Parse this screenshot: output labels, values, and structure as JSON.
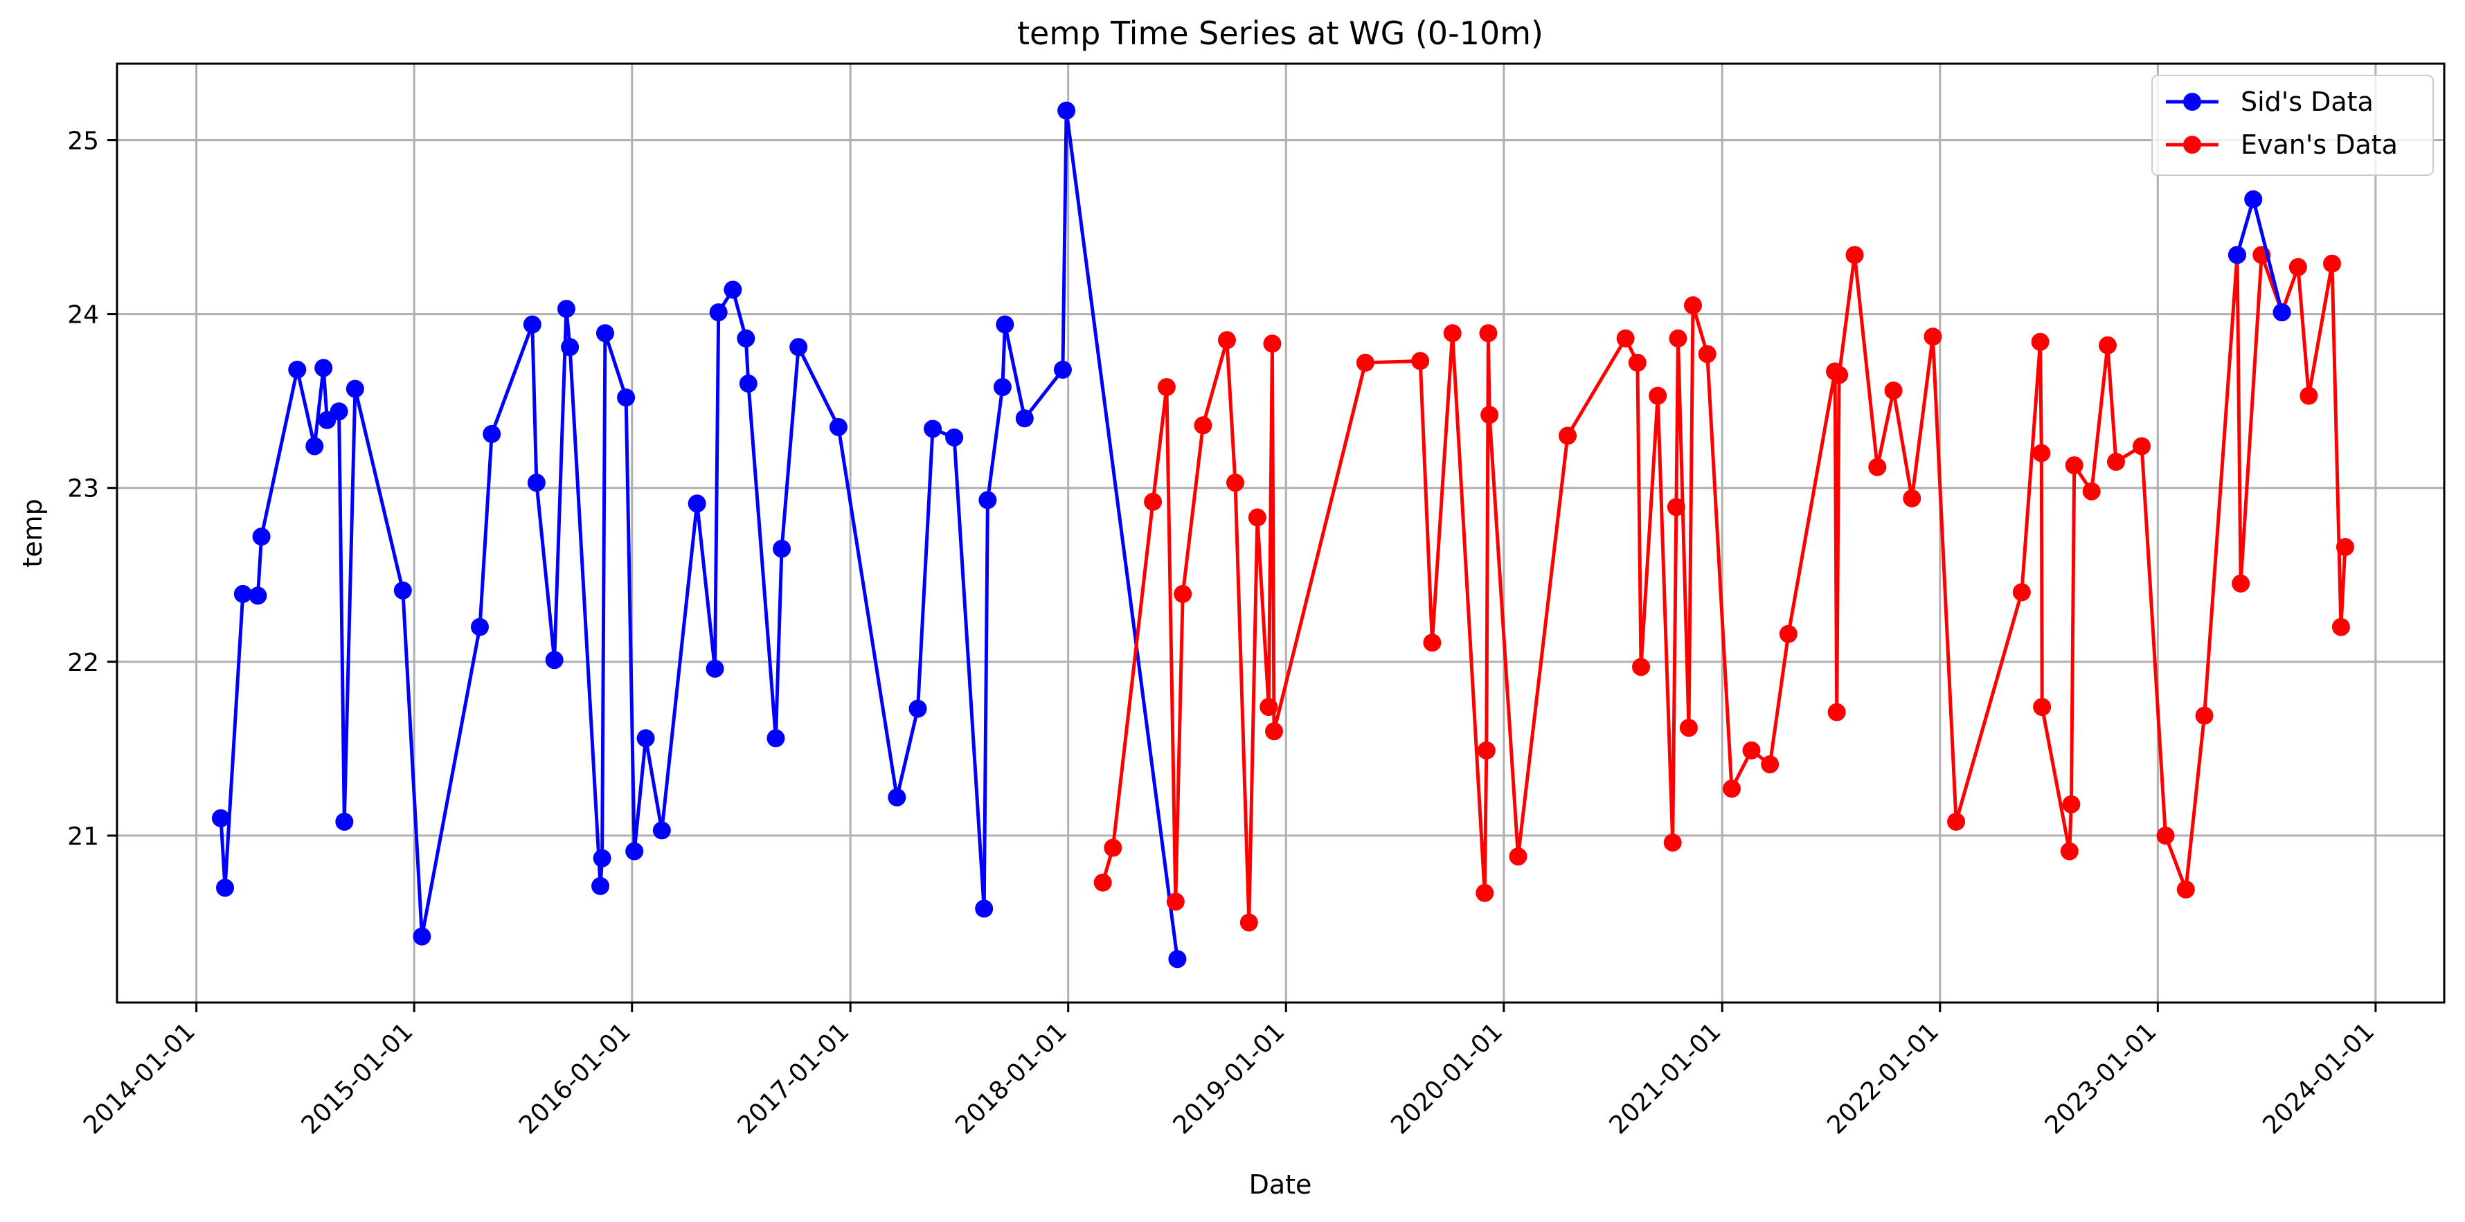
{
  "chart_data": {
    "type": "line",
    "title": "temp Time Series at WG (0-10m)",
    "xlabel": "Date",
    "ylabel": "temp",
    "x_type": "date",
    "xlim": [
      "2013-08-21",
      "2024-04-25"
    ],
    "ylim": [
      20.04,
      25.44
    ],
    "x_ticks": [
      "2014-01-01",
      "2015-01-01",
      "2016-01-01",
      "2017-01-01",
      "2018-01-01",
      "2019-01-01",
      "2020-01-01",
      "2021-01-01",
      "2022-01-01",
      "2023-01-01",
      "2024-01-01"
    ],
    "y_ticks": [
      21,
      22,
      23,
      24,
      25
    ],
    "grid": true,
    "legend_position": "top-right",
    "series": [
      {
        "name": "Sid's Data",
        "color": "#0000ff",
        "marker": "circle",
        "points": [
          [
            "2014-02-11",
            21.1
          ],
          [
            "2014-02-18",
            20.7
          ],
          [
            "2014-03-20",
            22.39
          ],
          [
            "2014-04-14",
            22.38
          ],
          [
            "2014-04-20",
            22.72
          ],
          [
            "2014-06-19",
            23.68
          ],
          [
            "2014-07-18",
            23.24
          ],
          [
            "2014-08-02",
            23.69
          ],
          [
            "2014-08-08",
            23.39
          ],
          [
            "2014-08-28",
            23.44
          ],
          [
            "2014-09-06",
            21.08
          ],
          [
            "2014-09-24",
            23.57
          ],
          [
            "2014-12-13",
            22.41
          ],
          [
            "2015-01-14",
            20.42
          ],
          [
            "2015-04-21",
            22.2
          ],
          [
            "2015-05-11",
            23.31
          ],
          [
            "2015-07-18",
            23.94
          ],
          [
            "2015-07-25",
            23.03
          ],
          [
            "2015-08-24",
            22.01
          ],
          [
            "2015-09-13",
            24.03
          ],
          [
            "2015-09-19",
            23.81
          ],
          [
            "2015-11-09",
            20.71
          ],
          [
            "2015-11-12",
            20.87
          ],
          [
            "2015-11-17",
            23.89
          ],
          [
            "2015-12-22",
            23.52
          ],
          [
            "2016-01-05",
            20.91
          ],
          [
            "2016-01-24",
            21.56
          ],
          [
            "2016-02-20",
            21.03
          ],
          [
            "2016-04-19",
            22.91
          ],
          [
            "2016-05-19",
            21.96
          ],
          [
            "2016-05-25",
            24.01
          ],
          [
            "2016-06-18",
            24.14
          ],
          [
            "2016-07-10",
            23.86
          ],
          [
            "2016-07-14",
            23.6
          ],
          [
            "2016-08-29",
            21.56
          ],
          [
            "2016-09-08",
            22.65
          ],
          [
            "2016-10-06",
            23.81
          ],
          [
            "2016-12-12",
            23.35
          ],
          [
            "2017-03-20",
            21.22
          ],
          [
            "2017-04-24",
            21.73
          ],
          [
            "2017-05-19",
            23.34
          ],
          [
            "2017-06-24",
            23.29
          ],
          [
            "2017-08-13",
            20.58
          ],
          [
            "2017-08-19",
            22.93
          ],
          [
            "2017-09-13",
            23.58
          ],
          [
            "2017-09-17",
            23.94
          ],
          [
            "2017-10-20",
            23.4
          ],
          [
            "2017-12-23",
            23.68
          ],
          [
            "2017-12-29",
            25.17
          ],
          [
            "2018-07-03",
            20.29
          ]
        ]
      },
      {
        "name": "Evan's Data",
        "color": "#ff0000",
        "marker": "circle",
        "points": [
          [
            "2018-02-28",
            20.73
          ],
          [
            "2018-03-17",
            20.93
          ],
          [
            "2018-05-23",
            22.92
          ],
          [
            "2018-06-15",
            23.58
          ],
          [
            "2018-06-30",
            20.62
          ],
          [
            "2018-07-12",
            22.39
          ],
          [
            "2018-08-15",
            23.36
          ],
          [
            "2018-09-24",
            23.85
          ],
          [
            "2018-10-08",
            23.03
          ],
          [
            "2018-10-31",
            20.5
          ],
          [
            "2018-11-14",
            22.83
          ],
          [
            "2018-12-03",
            21.74
          ],
          [
            "2018-12-09",
            23.83
          ],
          [
            "2018-12-12",
            21.6
          ],
          [
            "2019-05-14",
            23.72
          ],
          [
            "2019-08-14",
            23.73
          ],
          [
            "2019-09-03",
            22.11
          ],
          [
            "2019-10-07",
            23.89
          ],
          [
            "2019-11-30",
            20.67
          ],
          [
            "2019-12-03",
            21.49
          ],
          [
            "2019-12-06",
            23.89
          ],
          [
            "2019-12-08",
            23.42
          ],
          [
            "2020-01-25",
            20.88
          ],
          [
            "2020-04-17",
            23.3
          ],
          [
            "2020-07-23",
            23.86
          ],
          [
            "2020-08-12",
            23.72
          ],
          [
            "2020-08-18",
            21.97
          ],
          [
            "2020-09-15",
            23.53
          ],
          [
            "2020-10-10",
            20.96
          ],
          [
            "2020-10-16",
            22.89
          ],
          [
            "2020-10-19",
            23.86
          ],
          [
            "2020-11-06",
            21.62
          ],
          [
            "2020-11-13",
            24.05
          ],
          [
            "2020-12-07",
            23.77
          ],
          [
            "2021-01-17",
            21.27
          ],
          [
            "2021-02-19",
            21.49
          ],
          [
            "2021-03-22",
            21.41
          ],
          [
            "2021-04-22",
            22.16
          ],
          [
            "2021-07-09",
            23.67
          ],
          [
            "2021-07-12",
            21.71
          ],
          [
            "2021-07-16",
            23.65
          ],
          [
            "2021-08-11",
            24.34
          ],
          [
            "2021-09-18",
            23.12
          ],
          [
            "2021-10-15",
            23.56
          ],
          [
            "2021-11-15",
            22.94
          ],
          [
            "2021-12-20",
            23.87
          ],
          [
            "2022-01-28",
            21.08
          ],
          [
            "2022-05-18",
            22.4
          ],
          [
            "2022-06-18",
            23.84
          ],
          [
            "2022-06-20",
            23.2
          ],
          [
            "2022-06-21",
            21.74
          ],
          [
            "2022-08-06",
            20.91
          ],
          [
            "2022-08-09",
            21.18
          ],
          [
            "2022-08-14",
            23.13
          ],
          [
            "2022-09-12",
            22.98
          ],
          [
            "2022-10-09",
            23.82
          ],
          [
            "2022-10-23",
            23.15
          ],
          [
            "2022-12-05",
            23.24
          ],
          [
            "2023-01-14",
            21.0
          ],
          [
            "2023-02-17",
            20.69
          ],
          [
            "2023-03-20",
            21.69
          ],
          [
            "2023-05-14",
            24.34
          ],
          [
            "2023-05-20",
            22.45
          ],
          [
            "2023-06-24",
            24.34
          ],
          [
            "2023-07-28",
            24.01
          ],
          [
            "2023-08-24",
            24.27
          ],
          [
            "2023-09-11",
            23.53
          ],
          [
            "2023-10-20",
            24.29
          ],
          [
            "2023-11-04",
            22.2
          ],
          [
            "2023-11-11",
            22.66
          ]
        ]
      }
    ],
    "overlay_series": [
      {
        "series_name": "Sid's Data",
        "color": "#0000ff",
        "points": [
          [
            "2023-05-14",
            24.34
          ],
          [
            "2023-06-10",
            24.66
          ],
          [
            "2023-07-28",
            24.01
          ]
        ]
      }
    ]
  }
}
